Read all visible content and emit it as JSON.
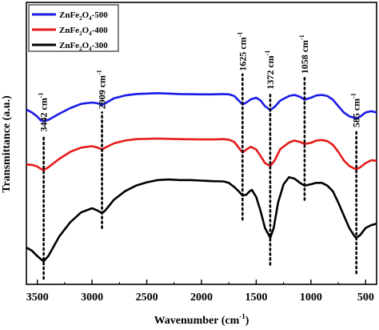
{
  "chart_data": {
    "type": "line",
    "xlabel": "Wavenumber (cm",
    "xlabel_sup": "-1",
    "xlabel_end": ")",
    "ylabel": "Transmittance (a.u.)",
    "xlim": [
      3600,
      400
    ],
    "x_reversed": true,
    "ylim": [
      0,
      1
    ],
    "y_ticks_shown": false,
    "x_ticks": [
      3500,
      3000,
      2500,
      2000,
      1500,
      1000,
      500
    ],
    "x_tick_labels": [
      "3500",
      "3000",
      "2500",
      "2000",
      "1500",
      "1000",
      "500"
    ],
    "legend": {
      "placement": "top-left",
      "entries": [
        {
          "base": "ZnFe",
          "sub1": "2",
          "mid": "O",
          "sub2": "4",
          "suffix": "-500",
          "color": "#1a1ae6"
        },
        {
          "base": "ZnFe",
          "sub1": "2",
          "mid": "O",
          "sub2": "4",
          "suffix": "-400",
          "color": "#e61a1a"
        },
        {
          "base": "ZnFe",
          "sub1": "2",
          "mid": "O",
          "sub2": "4",
          "suffix": "-300",
          "color": "#000000"
        }
      ]
    },
    "series": [
      {
        "color": "#1a1ae6",
        "x": [
          3600,
          3550,
          3500,
          3470,
          3442,
          3400,
          3300,
          3200,
          3100,
          3000,
          2950,
          2909,
          2880,
          2800,
          2700,
          2600,
          2400,
          2200,
          2000,
          1900,
          1800,
          1750,
          1700,
          1660,
          1625,
          1590,
          1550,
          1500,
          1460,
          1420,
          1372,
          1330,
          1280,
          1200,
          1150,
          1100,
          1058,
          1000,
          950,
          900,
          850,
          800,
          750,
          700,
          650,
          600,
          585,
          550,
          500,
          450,
          400
        ],
        "y": [
          0.62,
          0.61,
          0.595,
          0.582,
          0.578,
          0.583,
          0.605,
          0.625,
          0.64,
          0.645,
          0.642,
          0.637,
          0.642,
          0.66,
          0.67,
          0.675,
          0.678,
          0.675,
          0.674,
          0.674,
          0.675,
          0.674,
          0.668,
          0.652,
          0.638,
          0.645,
          0.656,
          0.662,
          0.652,
          0.632,
          0.618,
          0.63,
          0.652,
          0.668,
          0.672,
          0.665,
          0.655,
          0.662,
          0.67,
          0.672,
          0.668,
          0.655,
          0.632,
          0.61,
          0.596,
          0.59,
          0.588,
          0.595,
          0.61,
          0.614,
          0.61
        ]
      },
      {
        "color": "#e61a1a",
        "x": [
          3600,
          3550,
          3500,
          3470,
          3442,
          3400,
          3300,
          3200,
          3100,
          3000,
          2950,
          2909,
          2880,
          2800,
          2700,
          2600,
          2400,
          2200,
          2000,
          1900,
          1800,
          1750,
          1700,
          1660,
          1625,
          1590,
          1550,
          1500,
          1460,
          1420,
          1372,
          1330,
          1280,
          1200,
          1150,
          1100,
          1058,
          1000,
          950,
          900,
          850,
          800,
          750,
          700,
          650,
          600,
          585,
          550,
          500,
          450,
          400
        ],
        "y": [
          0.425,
          0.424,
          0.418,
          0.41,
          0.405,
          0.415,
          0.445,
          0.47,
          0.485,
          0.49,
          0.485,
          0.478,
          0.485,
          0.5,
          0.51,
          0.515,
          0.517,
          0.515,
          0.514,
          0.514,
          0.515,
          0.513,
          0.505,
          0.485,
          0.468,
          0.478,
          0.488,
          0.478,
          0.455,
          0.43,
          0.42,
          0.44,
          0.48,
          0.503,
          0.51,
          0.505,
          0.498,
          0.502,
          0.51,
          0.512,
          0.508,
          0.495,
          0.47,
          0.44,
          0.42,
          0.41,
          0.408,
          0.415,
          0.43,
          0.44,
          0.438
        ]
      },
      {
        "color": "#000000",
        "x": [
          3600,
          3550,
          3500,
          3470,
          3442,
          3400,
          3300,
          3200,
          3100,
          3000,
          2950,
          2909,
          2880,
          2800,
          2700,
          2600,
          2500,
          2400,
          2300,
          2200,
          2100,
          2000,
          1900,
          1800,
          1750,
          1700,
          1660,
          1625,
          1590,
          1560,
          1540,
          1500,
          1460,
          1420,
          1372,
          1340,
          1300,
          1250,
          1200,
          1150,
          1100,
          1058,
          1000,
          950,
          900,
          850,
          800,
          750,
          700,
          650,
          600,
          585,
          550,
          500,
          450,
          400
        ],
        "y": [
          0.13,
          0.12,
          0.1,
          0.09,
          0.082,
          0.1,
          0.17,
          0.22,
          0.255,
          0.27,
          0.262,
          0.252,
          0.262,
          0.3,
          0.33,
          0.35,
          0.362,
          0.37,
          0.372,
          0.37,
          0.37,
          0.368,
          0.366,
          0.365,
          0.36,
          0.345,
          0.33,
          0.315,
          0.318,
          0.33,
          0.335,
          0.31,
          0.26,
          0.2,
          0.165,
          0.2,
          0.29,
          0.355,
          0.38,
          0.375,
          0.36,
          0.35,
          0.355,
          0.36,
          0.36,
          0.35,
          0.33,
          0.29,
          0.245,
          0.2,
          0.17,
          0.165,
          0.175,
          0.2,
          0.21,
          0.215
        ]
      }
    ],
    "annotations": [
      {
        "x": 3442,
        "label": "3442 cm",
        "sup": "-1",
        "line_from": 0.02,
        "line_to": 0.53
      },
      {
        "x": 2909,
        "label": "2909 cm",
        "sup": "-1",
        "line_from": 0.2,
        "line_to": 0.61
      },
      {
        "x": 1625,
        "label": "1625 cm",
        "sup": "-1",
        "line_from": 0.23,
        "line_to": 0.745
      },
      {
        "x": 1372,
        "label": "1372 cm",
        "sup": "-1",
        "line_from": 0.07,
        "line_to": 0.68
      },
      {
        "x": 1058,
        "label": "1058 cm",
        "sup": "-1",
        "line_from": 0.3,
        "line_to": 0.735
      },
      {
        "x": 585,
        "label": "585 cm",
        "sup": "-1",
        "line_from": 0.04,
        "line_to": 0.545
      }
    ]
  }
}
